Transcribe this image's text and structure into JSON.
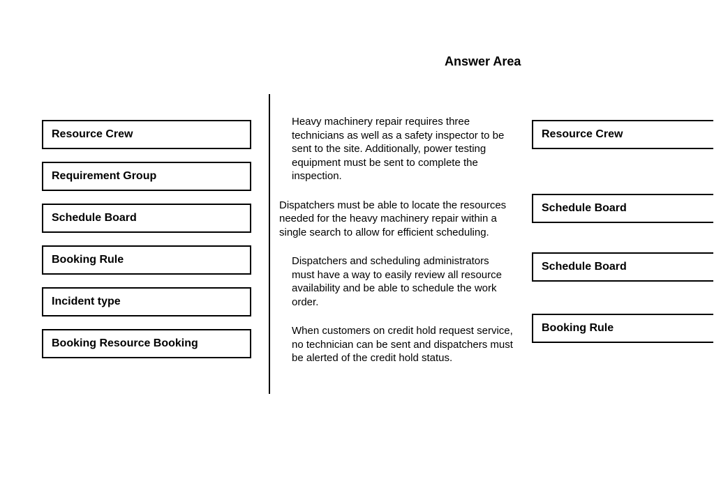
{
  "title": "Answer Area",
  "options": [
    "Resource Crew",
    "Requirement Group",
    "Schedule Board",
    "Booking Rule",
    "Incident type",
    "Booking Resource Booking"
  ],
  "scenarios": [
    "Heavy machinery repair requires three technicians as well as a safety inspector to be sent to the site. Additionally, power testing equipment must be sent to complete the inspection.",
    "Dispatchers must be able to locate the resources needed for the heavy machinery repair within a single search to allow for efficient scheduling.",
    "Dispatchers and scheduling administrators must have a way to easily review all resource availability and be able to schedule the work order.",
    "When customers on credit hold request service, no technician can be sent and dispatchers must be alerted of the credit hold status."
  ],
  "answers": [
    "Resource Crew",
    "Schedule Board",
    "Schedule Board",
    "Booking Rule"
  ],
  "colors": {
    "background": "#ffffff",
    "border": "#000000",
    "text": "#000000"
  },
  "typography": {
    "title_fontsize": 18,
    "option_fontsize": 16,
    "scenario_fontsize": 15,
    "font_family": "Arial"
  }
}
